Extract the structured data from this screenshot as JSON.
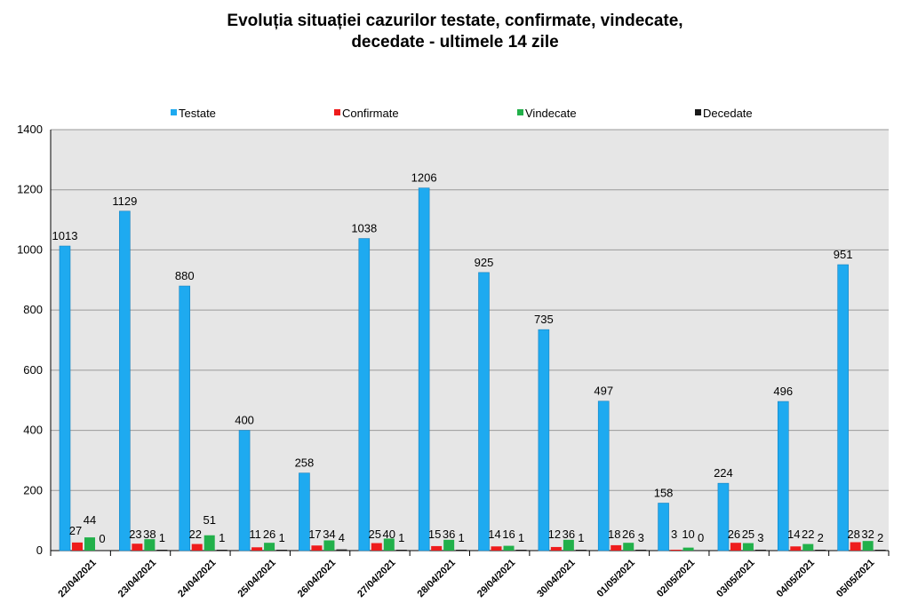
{
  "chart_data": {
    "type": "bar",
    "title_line1": "Evoluția situației cazurilor testate, confirmate, vindecate,",
    "title_line2": "decedate -  ultimele 14 zile",
    "categories": [
      "22/04/2021",
      "23/04/2021",
      "24/04/2021",
      "25/04/2021",
      "26/04/2021",
      "27/04/2021",
      "28/04/2021",
      "29/04/2021",
      "30/04/2021",
      "01/05/2021",
      "02/05/2021",
      "03/05/2021",
      "04/05/2021",
      "05/05/2021"
    ],
    "series": [
      {
        "name": "Testate",
        "color": "#1eaaf0",
        "values": [
          1013,
          1129,
          880,
          400,
          258,
          1038,
          1206,
          925,
          735,
          497,
          158,
          224,
          496,
          951
        ]
      },
      {
        "name": "Confirmate",
        "color": "#ee1c1c",
        "values": [
          27,
          23,
          22,
          11,
          17,
          25,
          15,
          14,
          12,
          18,
          3,
          26,
          14,
          28
        ]
      },
      {
        "name": "Vindecate",
        "color": "#22b04a",
        "values": [
          44,
          38,
          51,
          26,
          34,
          40,
          36,
          16,
          36,
          26,
          10,
          25,
          22,
          32
        ]
      },
      {
        "name": "Decedate",
        "color": "#1a1a1a",
        "values": [
          0,
          1,
          1,
          1,
          4,
          1,
          1,
          1,
          1,
          3,
          0,
          3,
          2,
          2
        ]
      }
    ],
    "ylim": [
      0,
      1400
    ],
    "yticks": [
      0,
      200,
      400,
      600,
      800,
      1000,
      1200,
      1400
    ],
    "grid": true,
    "legend": "top"
  }
}
